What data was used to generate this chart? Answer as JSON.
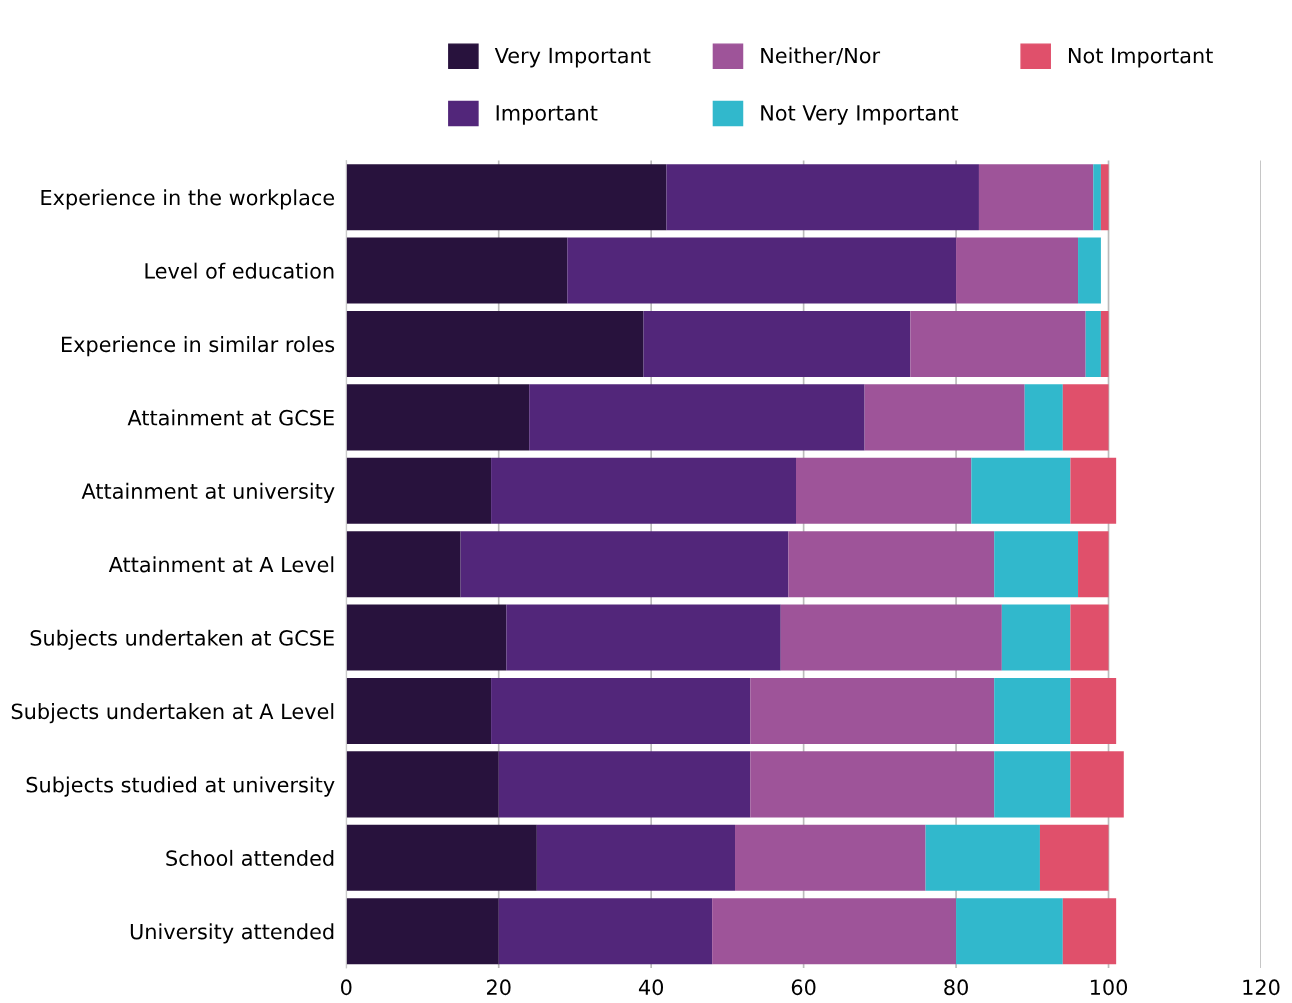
{
  "chart_data": {
    "type": "bar",
    "orientation": "horizontal",
    "stacked": true,
    "categories": [
      "Experience in the workplace",
      "Level of education",
      "Experience in similar roles",
      "Attainment at GCSE",
      "Attainment at university",
      "Attainment at A Level",
      "Subjects undertaken at GCSE",
      "Subjects undertaken at A Level",
      "Subjects studied at university",
      "School attended",
      "University attended"
    ],
    "series": [
      {
        "name": "Very Important",
        "color": "#28123d",
        "values": [
          42,
          29,
          39,
          24,
          19,
          15,
          21,
          19,
          20,
          25,
          20
        ]
      },
      {
        "name": "Important",
        "color": "#52267a",
        "values": [
          41,
          51,
          35,
          44,
          40,
          43,
          36,
          34,
          33,
          26,
          28
        ]
      },
      {
        "name": "Neither/Nor",
        "color": "#9e5499",
        "values": [
          15,
          16,
          23,
          21,
          23,
          27,
          29,
          32,
          32,
          25,
          32
        ]
      },
      {
        "name": "Not Very Important",
        "color": "#31b8cc",
        "values": [
          1,
          3,
          2,
          5,
          13,
          11,
          9,
          10,
          10,
          15,
          14
        ]
      },
      {
        "name": "Not Important",
        "color": "#e0506b",
        "values": [
          1,
          0,
          1,
          6,
          6,
          4,
          5,
          6,
          7,
          9,
          7
        ]
      }
    ],
    "xlim": [
      0,
      120
    ],
    "xticks": [
      0,
      20,
      40,
      60,
      80,
      100,
      120
    ],
    "grid": "x",
    "legend": "top"
  }
}
